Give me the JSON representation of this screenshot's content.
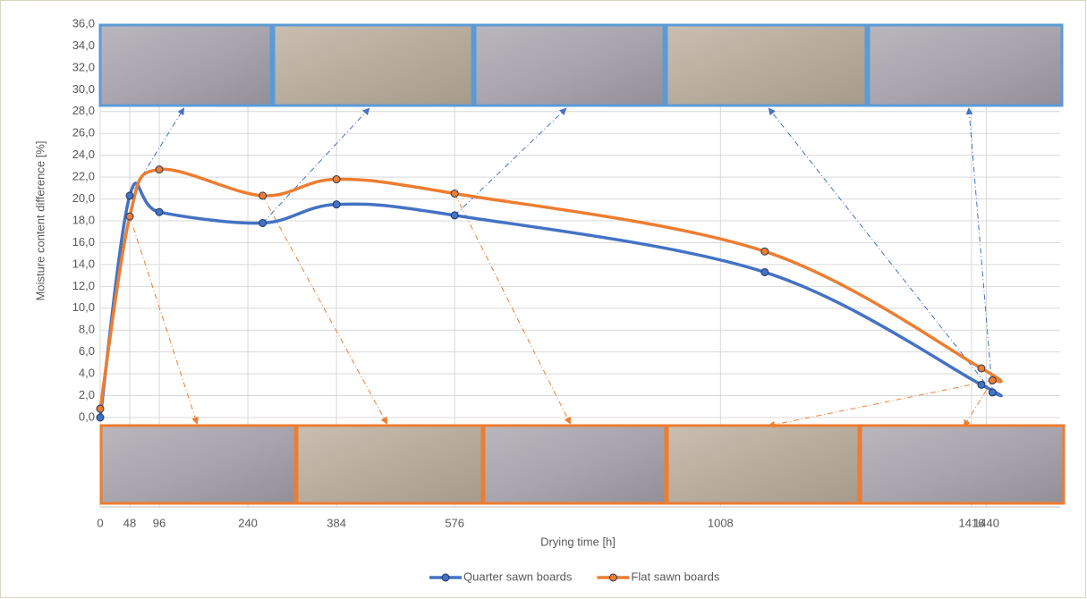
{
  "chart_data": {
    "type": "line",
    "x_label": "Drying time [h]",
    "y_label": "Moisture content difference [%]",
    "x": [
      0,
      48,
      96,
      264,
      384,
      576,
      1080,
      1432,
      1450
    ],
    "series": [
      {
        "name": "Quarter sawn boards",
        "color": "#4472c4",
        "values": [
          0.0,
          20.3,
          18.8,
          17.8,
          19.5,
          18.5,
          13.3,
          3.0,
          2.3
        ]
      },
      {
        "name": "Flat sawn boards",
        "color": "#ed7d31",
        "values": [
          0.8,
          18.4,
          22.7,
          20.3,
          21.8,
          20.5,
          15.2,
          4.5,
          3.4
        ]
      }
    ],
    "xlim": [
      0,
      1560
    ],
    "xticks": [
      0,
      48,
      96,
      240,
      384,
      576,
      1008,
      1416,
      1440
    ],
    "ylim": [
      0,
      36
    ],
    "yticks": [
      {
        "value": 0,
        "label": "0,0"
      },
      {
        "value": 2,
        "label": "2,0"
      },
      {
        "value": 4,
        "label": "4,0"
      },
      {
        "value": 6,
        "label": "6,0"
      },
      {
        "value": 8,
        "label": "8,0"
      },
      {
        "value": 10,
        "label": "10,0"
      },
      {
        "value": 12,
        "label": "12,0"
      },
      {
        "value": 14,
        "label": "14,0"
      },
      {
        "value": 16,
        "label": "16,0"
      },
      {
        "value": 18,
        "label": "18,0"
      },
      {
        "value": 20,
        "label": "20,0"
      },
      {
        "value": 22,
        "label": "22,0"
      },
      {
        "value": 24,
        "label": "24,0"
      },
      {
        "value": 26,
        "label": "26,0"
      },
      {
        "value": 28,
        "label": "28,0"
      },
      {
        "value": 30,
        "label": "30,0"
      },
      {
        "value": 32,
        "label": "32,0"
      },
      {
        "value": 34,
        "label": "34,0"
      },
      {
        "value": 36,
        "label": "36,0"
      }
    ],
    "grid": true
  }
}
